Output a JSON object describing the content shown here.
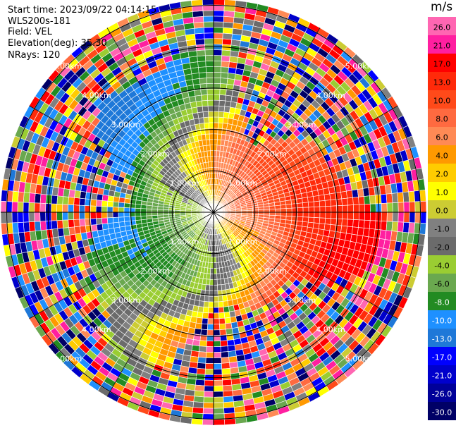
{
  "info": {
    "start_time": "Start time: 2023/09/22 04:14:15",
    "instrument": "WLS200s-181",
    "field": "Field: VEL",
    "elevation": "Elevation(deg): 35.30",
    "nrays": "NRays: 120"
  },
  "chart_data": {
    "type": "heatmap",
    "projection": "polar PPI",
    "rays": 120,
    "range_rings_km": [
      1.0,
      2.0,
      3.0,
      4.0,
      5.0
    ],
    "ring_labels": [
      "1.00km",
      "2.00km",
      "3.00km",
      "4.00km",
      "5.00km"
    ],
    "colorbar": {
      "unit": "m/s",
      "ticks": [
        "26.0",
        "21.0",
        "17.0",
        "13.0",
        "10.0",
        "8.0",
        "6.0",
        "4.0",
        "2.0",
        "1.0",
        "0.0",
        "-1.0",
        "-2.0",
        "-4.0",
        "-6.0",
        "-8.0",
        "-10.0",
        "-13.0",
        "-17.0",
        "-21.0",
        "-26.0",
        "-30.0"
      ],
      "colors": [
        "#ff66b2",
        "#ff1fa0",
        "#ff0000",
        "#ff2a0a",
        "#ff4a1a",
        "#ff6a40",
        "#ff8a55",
        "#ff9900",
        "#ffcc00",
        "#ffff00",
        "#cccc33",
        "#808080",
        "#6b6b6b",
        "#9acd32",
        "#6aa84f",
        "#228b22",
        "#1e90ff",
        "#1e78d8",
        "#0000ff",
        "#0000cc",
        "#000099",
        "#000066"
      ]
    },
    "wind_pattern": {
      "approaching_direction": "west",
      "receding_direction": "east",
      "max_radial_velocity_ms": 13.0,
      "min_radial_velocity_ms": -10.0
    }
  },
  "colors": {
    "background": "#ffffff",
    "ring_stroke": "#000000"
  }
}
